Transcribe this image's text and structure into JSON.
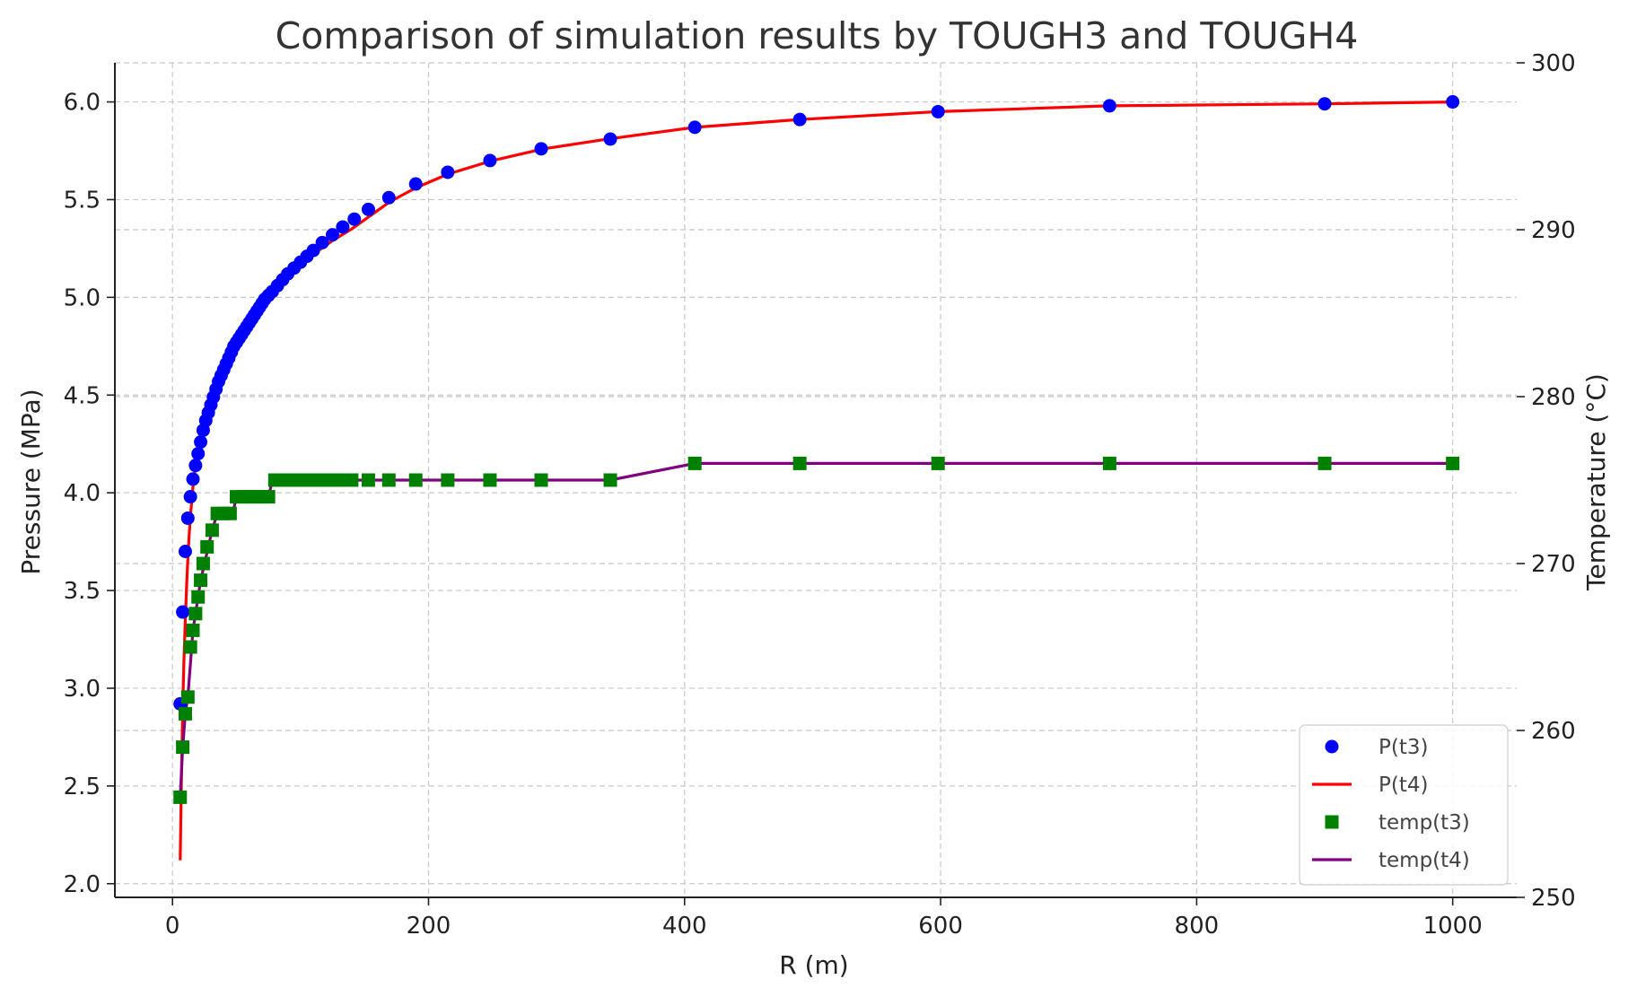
{
  "chart_data": {
    "type": "line",
    "title": "Comparison of simulation results by TOUGH3 and TOUGH4",
    "xlabel": "R (m)",
    "ylabel": "Pressure (MPa)",
    "y2label": "Temperature (°C)",
    "xlim": [
      -45,
      1050
    ],
    "ylim": [
      1.93,
      6.2
    ],
    "y2lim": [
      250,
      300
    ],
    "xticks": [
      "0",
      "200",
      "400",
      "600",
      "800",
      "1000"
    ],
    "yticks": [
      "2.0",
      "2.5",
      "3.0",
      "3.5",
      "4.0",
      "4.5",
      "5.0",
      "5.5",
      "6.0"
    ],
    "y2ticks": [
      "250",
      "260",
      "270",
      "280",
      "290",
      "300"
    ],
    "grid": true,
    "legend_position": "lower-right",
    "colors": {
      "p_t3": "#0000ff",
      "p_t4": "#ff0000",
      "temp_t3": "#008000",
      "temp_t4": "#800080"
    },
    "series": [
      {
        "name": "P(t3)",
        "axis": "left",
        "style": "circle-markers",
        "x": [
          6,
          8,
          10,
          12,
          14,
          16,
          18,
          20,
          22,
          24,
          26,
          28,
          30,
          32,
          34,
          36,
          38,
          40,
          42,
          44,
          46,
          48,
          50,
          52,
          54,
          56,
          58,
          60,
          62,
          64,
          66,
          68,
          70,
          72,
          75,
          78,
          82,
          86,
          90,
          95,
          100,
          105,
          110,
          117,
          125,
          133,
          142,
          153,
          169,
          190,
          215,
          248,
          288,
          342,
          408,
          490,
          598,
          732,
          900,
          1000
        ],
        "y": [
          2.92,
          3.39,
          3.7,
          3.87,
          3.98,
          4.07,
          4.14,
          4.2,
          4.26,
          4.32,
          4.37,
          4.41,
          4.45,
          4.49,
          4.53,
          4.57,
          4.6,
          4.63,
          4.66,
          4.69,
          4.72,
          4.75,
          4.77,
          4.79,
          4.81,
          4.83,
          4.85,
          4.87,
          4.89,
          4.91,
          4.93,
          4.95,
          4.97,
          4.99,
          5.01,
          5.03,
          5.06,
          5.09,
          5.12,
          5.15,
          5.18,
          5.21,
          5.24,
          5.28,
          5.32,
          5.36,
          5.4,
          5.45,
          5.51,
          5.58,
          5.64,
          5.7,
          5.76,
          5.81,
          5.87,
          5.91,
          5.95,
          5.98,
          5.99,
          6.0
        ]
      },
      {
        "name": "P(t4)",
        "axis": "left",
        "style": "line",
        "x": [
          6,
          7,
          8,
          9,
          10,
          11,
          12,
          13,
          14,
          16,
          18,
          20,
          23,
          26,
          30,
          35,
          40,
          45,
          50,
          60,
          70,
          80,
          90,
          100,
          110,
          125,
          140,
          155,
          170,
          190,
          215,
          250,
          290,
          340,
          408,
          490,
          598,
          732,
          900,
          1000
        ],
        "y": [
          2.12,
          2.55,
          2.9,
          3.15,
          3.35,
          3.52,
          3.66,
          3.78,
          3.88,
          4.03,
          4.14,
          4.22,
          4.32,
          4.4,
          4.49,
          4.58,
          4.66,
          4.72,
          4.78,
          4.88,
          4.97,
          5.05,
          5.11,
          5.17,
          5.22,
          5.29,
          5.35,
          5.42,
          5.49,
          5.56,
          5.63,
          5.7,
          5.76,
          5.81,
          5.87,
          5.91,
          5.95,
          5.98,
          5.99,
          6.0
        ]
      },
      {
        "name": "temp(t3)",
        "axis": "right",
        "style": "square-markers",
        "x": [
          6,
          8,
          10,
          12,
          14,
          16,
          18,
          20,
          22,
          24,
          27,
          31,
          35,
          40,
          45,
          50,
          55,
          60,
          65,
          70,
          75,
          80,
          85,
          90,
          95,
          100,
          105,
          110,
          115,
          120,
          125,
          130,
          135,
          140,
          153,
          169,
          190,
          215,
          248,
          288,
          342,
          408,
          490,
          598,
          732,
          900,
          1000
        ],
        "y": [
          256,
          259,
          261,
          262,
          265,
          266,
          267,
          268,
          269,
          270,
          271,
          272,
          273,
          273,
          273,
          274,
          274,
          274,
          274,
          274,
          274,
          275,
          275,
          275,
          275,
          275,
          275,
          275,
          275,
          275,
          275,
          275,
          275,
          275,
          275,
          275,
          275,
          275,
          275,
          275,
          275,
          276,
          276,
          276,
          276,
          276,
          276
        ]
      },
      {
        "name": "temp(t4)",
        "axis": "right",
        "style": "line",
        "x": [
          6,
          8,
          10,
          12,
          14,
          16,
          18,
          20,
          22,
          25,
          28,
          31,
          35,
          47,
          50,
          75,
          78,
          342,
          408,
          1000
        ],
        "y": [
          256,
          259,
          261,
          262,
          264,
          266,
          267,
          268,
          269,
          270,
          271,
          272,
          273,
          273,
          274,
          274,
          275,
          275,
          276,
          276
        ]
      }
    ]
  }
}
